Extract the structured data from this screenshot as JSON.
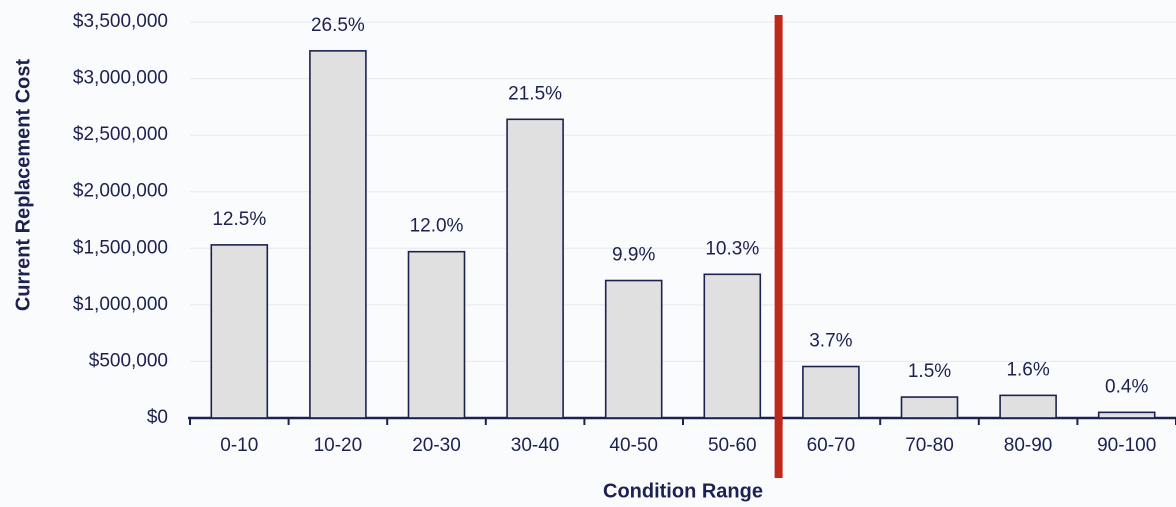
{
  "chart_data": {
    "type": "bar",
    "x_label": "Condition Range",
    "y_label": "Current Replacement Cost",
    "categories": [
      "0-10",
      "10-20",
      "20-30",
      "30-40",
      "40-50",
      "50-60",
      "60-70",
      "70-80",
      "80-90",
      "90-100"
    ],
    "values": [
      1530000,
      3245000,
      1470000,
      2640000,
      1215000,
      1270000,
      455000,
      185000,
      200000,
      50000
    ],
    "shares": [
      {
        "value": 12.5,
        "label": "12.5%"
      },
      {
        "value": 26.5,
        "label": "26.5%"
      },
      {
        "value": 12.0,
        "label": "12.0%"
      },
      {
        "value": 21.5,
        "label": "21.5%"
      },
      {
        "value": 9.9,
        "label": "9.9%"
      },
      {
        "value": 10.3,
        "label": "10.3%"
      },
      {
        "value": 3.7,
        "label": "3.7%"
      },
      {
        "value": 1.5,
        "label": "1.5%"
      },
      {
        "value": 1.6,
        "label": "1.6%"
      },
      {
        "value": 0.4,
        "label": "0.4%"
      }
    ],
    "color": "#e0e0e0",
    "ylim": [
      0,
      3500000
    ],
    "yticks": [
      {
        "value": 0,
        "label": "$0"
      },
      {
        "value": 500000,
        "label": "$500,000"
      },
      {
        "value": 1000000,
        "label": "$1,000,000"
      },
      {
        "value": 1500000,
        "label": "$1,500,000"
      },
      {
        "value": 2000000,
        "label": "$2,000,000"
      },
      {
        "value": 2500000,
        "label": "$2,500,000"
      },
      {
        "value": 3000000,
        "label": "$3,000,000"
      },
      {
        "value": 3500000,
        "label": "$3,500,000"
      }
    ],
    "grid": true
  }
}
